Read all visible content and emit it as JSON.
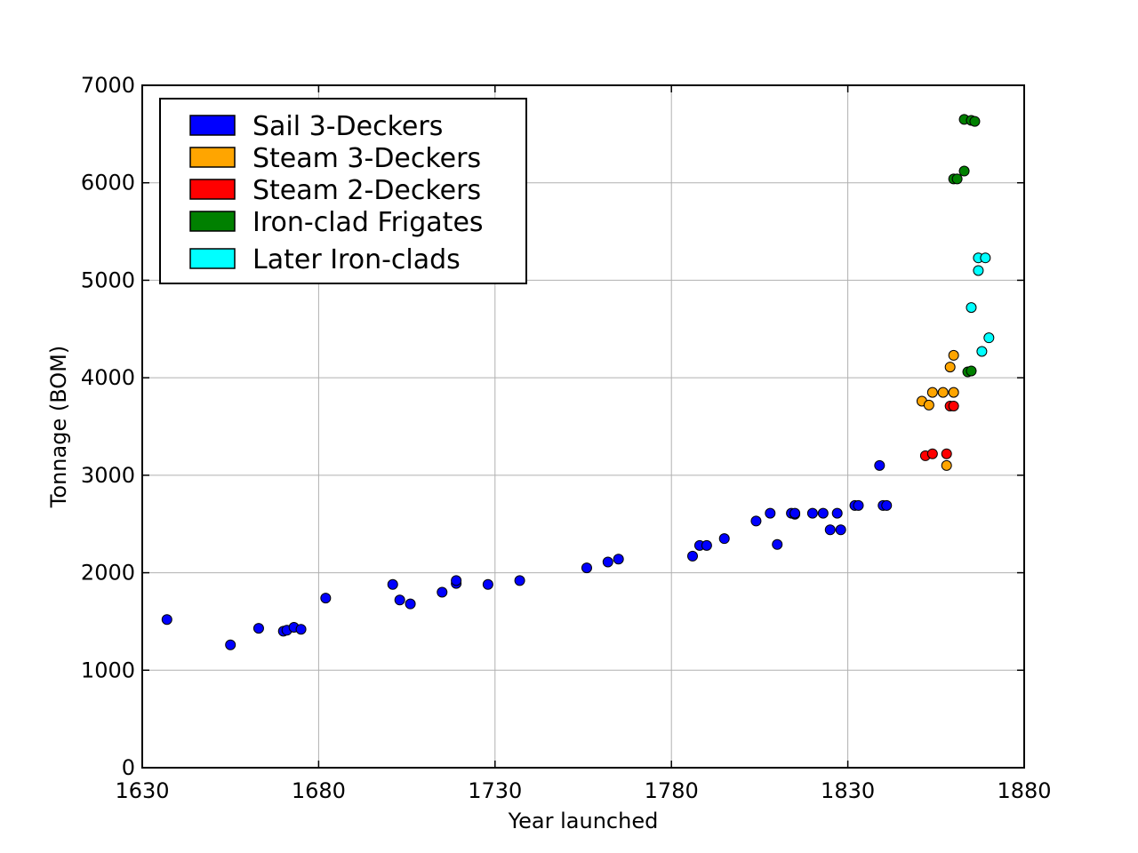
{
  "chart_data": {
    "type": "scatter",
    "title": "",
    "xlabel": "Year launched",
    "ylabel": "Tonnage (BOM)",
    "xlim": [
      1630,
      1880
    ],
    "ylim": [
      0,
      7000
    ],
    "xticks": [
      1630,
      1680,
      1730,
      1780,
      1830,
      1880
    ],
    "yticks": [
      0,
      1000,
      2000,
      3000,
      4000,
      5000,
      6000,
      7000
    ],
    "grid": true,
    "legend_position": "top-left",
    "series": [
      {
        "name": "Sail 3-Deckers",
        "color": "#0000ff",
        "points": [
          [
            1637,
            1520
          ],
          [
            1655,
            1260
          ],
          [
            1663,
            1430
          ],
          [
            1670,
            1400
          ],
          [
            1671,
            1410
          ],
          [
            1673,
            1440
          ],
          [
            1675,
            1420
          ],
          [
            1682,
            1740
          ],
          [
            1701,
            1880
          ],
          [
            1703,
            1720
          ],
          [
            1706,
            1680
          ],
          [
            1715,
            1800
          ],
          [
            1719,
            1890
          ],
          [
            1719,
            1920
          ],
          [
            1728,
            1880
          ],
          [
            1737,
            1920
          ],
          [
            1756,
            2050
          ],
          [
            1762,
            2110
          ],
          [
            1765,
            2140
          ],
          [
            1786,
            2170
          ],
          [
            1788,
            2280
          ],
          [
            1790,
            2280
          ],
          [
            1795,
            2350
          ],
          [
            1804,
            2530
          ],
          [
            1808,
            2610
          ],
          [
            1810,
            2290
          ],
          [
            1814,
            2610
          ],
          [
            1815,
            2600
          ],
          [
            1815,
            2610
          ],
          [
            1820,
            2610
          ],
          [
            1823,
            2610
          ],
          [
            1825,
            2440
          ],
          [
            1827,
            2610
          ],
          [
            1828,
            2440
          ],
          [
            1832,
            2690
          ],
          [
            1833,
            2690
          ],
          [
            1839,
            3100
          ],
          [
            1840,
            2690
          ],
          [
            1841,
            2690
          ]
        ]
      },
      {
        "name": "Steam 3-Deckers",
        "color": "#ffa500",
        "points": [
          [
            1851,
            3760
          ],
          [
            1853,
            3720
          ],
          [
            1854,
            3850
          ],
          [
            1857,
            3850
          ],
          [
            1858,
            3100
          ],
          [
            1859,
            4110
          ],
          [
            1860,
            4230
          ],
          [
            1860,
            3850
          ]
        ]
      },
      {
        "name": "Steam 2-Deckers",
        "color": "#ff0000",
        "points": [
          [
            1852,
            3200
          ],
          [
            1854,
            3220
          ],
          [
            1858,
            3220
          ],
          [
            1859,
            3710
          ],
          [
            1860,
            3710
          ]
        ]
      },
      {
        "name": "Iron-clad Frigates",
        "color": "#008000",
        "points": [
          [
            1860,
            6040
          ],
          [
            1861,
            6040
          ],
          [
            1863,
            6120
          ],
          [
            1863,
            6650
          ],
          [
            1865,
            6640
          ],
          [
            1866,
            6630
          ],
          [
            1864,
            4060
          ],
          [
            1865,
            4070
          ]
        ]
      },
      {
        "name": "Later Iron-clads",
        "color": "#00ffff",
        "points": [
          [
            1865,
            4720
          ],
          [
            1867,
            5230
          ],
          [
            1867,
            5100
          ],
          [
            1868,
            4270
          ],
          [
            1869,
            5230
          ],
          [
            1870,
            4410
          ]
        ]
      }
    ]
  }
}
